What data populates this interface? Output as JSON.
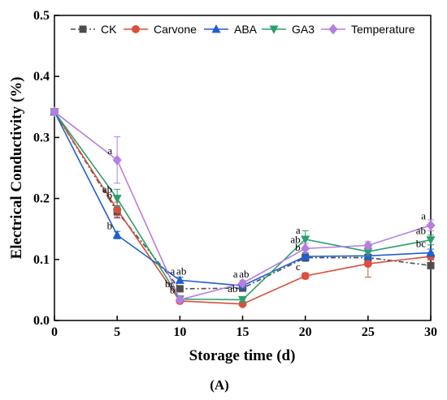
{
  "chart_data": {
    "type": "line",
    "panel_label": "(A)",
    "xlabel": "Storage time (d)",
    "ylabel": "Electrical Conductivity (%)",
    "xlim": [
      0,
      30
    ],
    "ylim": [
      0,
      0.5
    ],
    "x": [
      0,
      5,
      10,
      15,
      20,
      25,
      30
    ],
    "x_ticks": [
      {
        "value": 0,
        "label": "0"
      },
      {
        "value": 5,
        "label": "5"
      },
      {
        "value": 10,
        "label": "10"
      },
      {
        "value": 15,
        "label": "15"
      },
      {
        "value": 20,
        "label": "20"
      },
      {
        "value": 25,
        "label": "25"
      },
      {
        "value": 30,
        "label": "30"
      }
    ],
    "y_ticks": [
      {
        "value": 0,
        "label": "0.0"
      },
      {
        "value": 0.1,
        "label": "0.1"
      },
      {
        "value": 0.2,
        "label": "0.2"
      },
      {
        "value": 0.3,
        "label": "0.3"
      },
      {
        "value": 0.4,
        "label": "0.4"
      },
      {
        "value": 0.5,
        "label": "0.5"
      }
    ],
    "grid": false,
    "legend_position": "top",
    "series": [
      {
        "name": "CK",
        "color": "#4d4d4d",
        "marker": "square",
        "dash": "6,3,2,3",
        "values": [
          0.342,
          0.178,
          0.052,
          0.053,
          0.103,
          0.103,
          0.09
        ],
        "errors": [
          0.005,
          0.01,
          0.004,
          0.004,
          0.006,
          0.006,
          0.005
        ]
      },
      {
        "name": "Carvone",
        "color": "#d94f3a",
        "marker": "circle",
        "dash": "",
        "values": [
          0.342,
          0.182,
          0.032,
          0.027,
          0.073,
          0.093,
          0.105
        ],
        "errors": [
          0.005,
          0.012,
          0.003,
          0.003,
          0.005,
          0.022,
          0.006
        ]
      },
      {
        "name": "ABA",
        "color": "#1f5fd1",
        "marker": "triangle-up",
        "dash": "",
        "values": [
          0.342,
          0.14,
          0.066,
          0.057,
          0.105,
          0.106,
          0.111
        ],
        "errors": [
          0.005,
          0.006,
          0.005,
          0.004,
          0.006,
          0.006,
          0.006
        ]
      },
      {
        "name": "GA3",
        "color": "#2e9e6e",
        "marker": "triangle-down",
        "dash": "",
        "values": [
          0.342,
          0.2,
          0.035,
          0.034,
          0.133,
          0.113,
          0.132
        ],
        "errors": [
          0.005,
          0.015,
          0.004,
          0.004,
          0.014,
          0.007,
          0.008
        ]
      },
      {
        "name": "Temperature",
        "color": "#b57ee0",
        "marker": "diamond",
        "dash": "",
        "values": [
          0.342,
          0.263,
          0.034,
          0.061,
          0.118,
          0.123,
          0.156
        ],
        "errors": [
          0.005,
          0.038,
          0.004,
          0.005,
          0.008,
          0.006,
          0.009
        ]
      }
    ],
    "annotations": [
      {
        "x": 5,
        "y": 0.263,
        "text": "a"
      },
      {
        "x": 5,
        "y": 0.2,
        "text": "ab"
      },
      {
        "x": 5,
        "y": 0.19,
        "text": "b"
      },
      {
        "x": 5,
        "y": 0.14,
        "text": "b"
      },
      {
        "x": 10,
        "y": 0.066,
        "text": "a"
      },
      {
        "x": 10,
        "y": 0.066,
        "text": "ab"
      },
      {
        "x": 10,
        "y": 0.045,
        "text": "bc"
      },
      {
        "x": 10,
        "y": 0.035,
        "text": "b"
      },
      {
        "x": 15,
        "y": 0.061,
        "text": "a"
      },
      {
        "x": 15,
        "y": 0.061,
        "text": "ab"
      },
      {
        "x": 15,
        "y": 0.037,
        "text": "ab"
      },
      {
        "x": 20,
        "y": 0.133,
        "text": "a"
      },
      {
        "x": 20,
        "y": 0.118,
        "text": "ab"
      },
      {
        "x": 20,
        "y": 0.105,
        "text": "b"
      },
      {
        "x": 20,
        "y": 0.073,
        "text": "c"
      },
      {
        "x": 30,
        "y": 0.156,
        "text": "a"
      },
      {
        "x": 30,
        "y": 0.132,
        "text": "ab"
      },
      {
        "x": 30,
        "y": 0.111,
        "text": "bc"
      }
    ]
  }
}
